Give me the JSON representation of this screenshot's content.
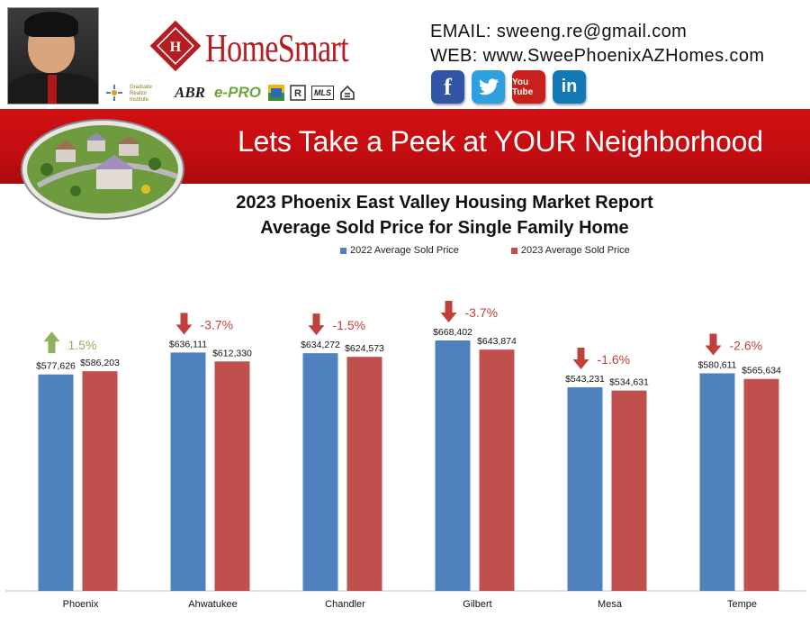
{
  "header": {
    "logo_text": "HomeSmart",
    "email_line": "EMAIL: sweeng.re@gmail.com",
    "web_line": "WEB: www.SweePhoenixAZHomes.com",
    "badges": {
      "abr": "ABR",
      "epro": "e-PRO",
      "graduate": "Graduate Realtor Institute",
      "mls": "MLS"
    },
    "social": [
      {
        "name": "facebook",
        "label": "f",
        "icon": "facebook-icon",
        "color": "#2f55a4"
      },
      {
        "name": "twitter",
        "label": "t",
        "icon": "twitter-icon",
        "color": "#2ea0e0"
      },
      {
        "name": "youtube",
        "label": "You Tube",
        "icon": "youtube-icon",
        "color": "#c8211c"
      },
      {
        "name": "linkedin",
        "label": "in",
        "icon": "linkedin-icon",
        "color": "#1279b6"
      }
    ]
  },
  "banner": {
    "title": "Lets Take a Peek at YOUR Neighborhood",
    "color": "#c8100f"
  },
  "chart_data": {
    "type": "bar",
    "title_line1": "2023 Phoenix East Valley Housing Market Report",
    "title_line2": "Average Sold Price for Single Family Home",
    "legend_placement": "top",
    "grid": false,
    "categories": [
      "Phoenix",
      "Ahwatukee",
      "Chandler",
      "Gilbert",
      "Mesa",
      "Tempe"
    ],
    "series": [
      {
        "name": "2022 Average Sold Price",
        "color": "#4f81bd",
        "values": [
          577626,
          636111,
          634272,
          668402,
          543231,
          580611
        ],
        "labels": [
          "$577,626",
          "$636,111",
          "$634,272",
          "$668,402",
          "$543,231",
          "$580,611"
        ]
      },
      {
        "name": "2023 Average Sold Price",
        "color": "#c0504d",
        "values": [
          586203,
          612330,
          624573,
          643874,
          534631,
          565634
        ],
        "labels": [
          "$586,203",
          "$612,330",
          "$624,573",
          "$643,874",
          "$534,631",
          "$565,634"
        ]
      }
    ],
    "changes": [
      {
        "text": "1.5%",
        "direction": "up"
      },
      {
        "text": "-3.7%",
        "direction": "down"
      },
      {
        "text": "-1.5%",
        "direction": "down"
      },
      {
        "text": "-3.7%",
        "direction": "down"
      },
      {
        "text": "-1.6%",
        "direction": "down"
      },
      {
        "text": "-2.6%",
        "direction": "down"
      }
    ],
    "colors": {
      "up": "#8db25a",
      "down": "#c0403c"
    },
    "ylim": [
      0,
      700000
    ]
  }
}
